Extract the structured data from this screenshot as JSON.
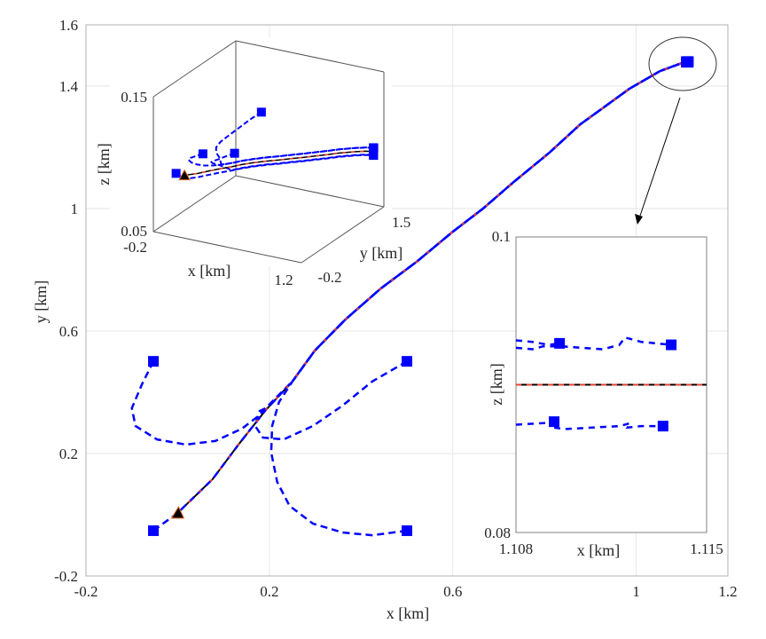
{
  "chart_data": [
    {
      "type": "line",
      "panel": "main",
      "xlabel": "x [km]",
      "ylabel": "y [km]",
      "xlim": [
        -0.2,
        1.2
      ],
      "ylim": [
        -0.2,
        1.6
      ],
      "xticks": [
        "-0.2",
        "0.2",
        "0.6",
        "1",
        "1.2"
      ],
      "yticks": [
        "-0.2",
        "0.2",
        "0.6",
        "1",
        "1.4",
        "1.6"
      ],
      "grid": true,
      "colors": {
        "leader_solid": "#000000",
        "leader_dashed": "#e8412c",
        "agents": "#0000ff",
        "marker_start": "#0000ff",
        "leader_marker": "#000000"
      },
      "leader": {
        "x": [
          0.0,
          0.076,
          0.134,
          0.192,
          0.25,
          0.299,
          0.366,
          0.443,
          0.521,
          0.598,
          0.666,
          0.733,
          0.811,
          0.878,
          0.927,
          0.985,
          1.052,
          1.11
        ],
        "y": [
          0.006,
          0.116,
          0.232,
          0.342,
          0.435,
          0.536,
          0.638,
          0.739,
          0.826,
          0.922,
          1.0,
          1.087,
          1.183,
          1.275,
          1.328,
          1.391,
          1.449,
          1.481
        ]
      },
      "agents": [
        {
          "x": [
            -0.053,
            -0.078,
            -0.1,
            -0.092,
            -0.045,
            0.018,
            0.082,
            0.14,
            0.173,
            0.192
          ],
          "y": [
            0.501,
            0.426,
            0.348,
            0.29,
            0.246,
            0.229,
            0.241,
            0.281,
            0.319,
            0.348
          ]
        },
        {
          "x": [
            0.5,
            0.424,
            0.36,
            0.295,
            0.231,
            0.186,
            0.169,
            0.179,
            0.192
          ],
          "y": [
            0.501,
            0.435,
            0.357,
            0.29,
            0.246,
            0.252,
            0.29,
            0.339,
            0.348
          ]
        },
        {
          "x": [
            0.5,
            0.424,
            0.36,
            0.295,
            0.244,
            0.217,
            0.204,
            0.206,
            0.221,
            0.25
          ],
          "y": [
            -0.052,
            -0.067,
            -0.058,
            -0.029,
            0.029,
            0.107,
            0.203,
            0.29,
            0.368,
            0.435
          ]
        },
        {
          "x": [
            -0.053,
            0.0
          ],
          "y": [
            -0.052,
            0.006
          ]
        }
      ],
      "start_markers": {
        "x": [
          -0.053,
          0.5,
          0.5,
          -0.053
        ],
        "y": [
          0.501,
          0.501,
          -0.052,
          -0.052
        ]
      },
      "end_markers": {
        "x": [
          1.1096,
          1.1137,
          1.1094,
          1.1134
        ],
        "y": [
          1.48,
          1.48,
          1.478,
          1.478
        ]
      },
      "leader_start_marker": {
        "x": 0.0,
        "y": 0.006,
        "shape": "triangle"
      }
    },
    {
      "type": "line",
      "panel": "inset-3d",
      "xlabel": "x [km]",
      "ylabel": "y [km]",
      "zlabel": "z [km]",
      "xlim": [
        -0.2,
        1.2
      ],
      "ylim": [
        -0.2,
        1.5
      ],
      "zlim": [
        0.05,
        0.15
      ],
      "xticks": [
        "-0.2",
        "1.2"
      ],
      "yticks": [
        "-0.2",
        "1.5"
      ],
      "zticks": [
        "0.05",
        "0.15"
      ],
      "leader_z": 0.09,
      "agent_start_z": [
        0.093,
        0.133,
        0.116,
        0.092
      ],
      "agent_end_z": [
        0.0928,
        0.0927,
        0.0875,
        0.0872
      ]
    },
    {
      "type": "line",
      "panel": "inset-zoom",
      "xlabel": "x [km]",
      "ylabel": "z [km]",
      "xlim": [
        1.108,
        1.115
      ],
      "ylim": [
        0.08,
        0.1
      ],
      "xticks": [
        "1.108",
        "1.115"
      ],
      "yticks": [
        "0.08",
        "0.1"
      ],
      "leader": {
        "x": [
          1.108,
          1.115
        ],
        "z": [
          0.09,
          0.09
        ]
      },
      "agents": [
        {
          "x": [
            1.108,
            1.1086,
            1.1092,
            1.1096
          ],
          "z": [
            0.093,
            0.0929,
            0.0927,
            0.0928
          ]
        },
        {
          "x": [
            1.108,
            1.1086,
            1.109,
            1.1097,
            1.1104,
            1.1112,
            1.1118,
            1.112,
            1.1126,
            1.1137
          ],
          "z": [
            0.0925,
            0.0924,
            0.0926,
            0.0926,
            0.0925,
            0.0924,
            0.0927,
            0.0932,
            0.0929,
            0.0927
          ]
        },
        {
          "x": [
            1.108,
            1.109,
            1.1094
          ],
          "z": [
            0.0873,
            0.0874,
            0.0875
          ]
        },
        {
          "x": [
            1.1094,
            1.1098,
            1.1108,
            1.1118,
            1.1122,
            1.1121,
            1.1126,
            1.1134
          ],
          "z": [
            0.0871,
            0.087,
            0.0871,
            0.0872,
            0.0874,
            0.0871,
            0.0872,
            0.0872
          ]
        }
      ],
      "end_markers": {
        "x": [
          1.1096,
          1.1137,
          1.1094,
          1.1134
        ],
        "z": [
          0.0928,
          0.0927,
          0.0875,
          0.0872
        ]
      }
    }
  ]
}
